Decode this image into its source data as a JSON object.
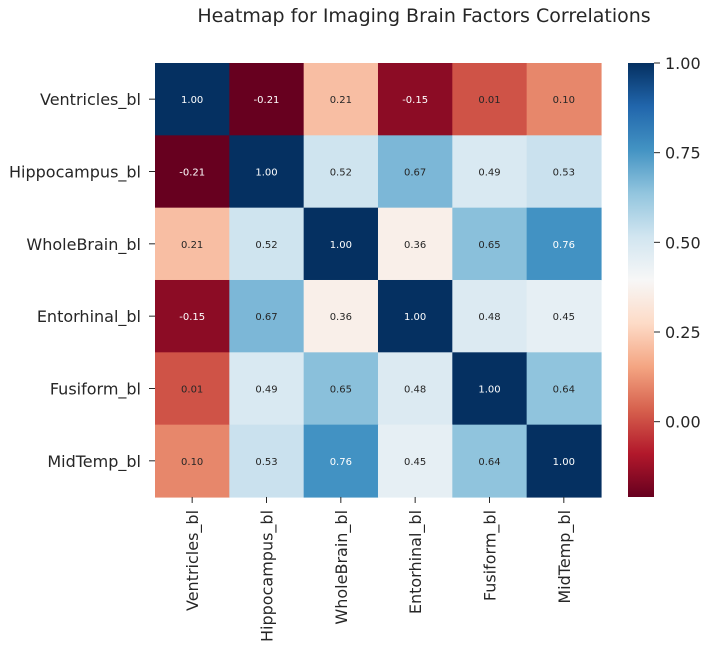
{
  "chart_data": {
    "type": "heatmap",
    "title": "Heatmap for Imaging Brain Factors Correlations",
    "xlabel": "",
    "ylabel": "",
    "rows": [
      "Ventricles_bl",
      "Hippocampus_bl",
      "WholeBrain_bl",
      "Entorhinal_bl",
      "Fusiform_bl",
      "MidTemp_bl"
    ],
    "columns": [
      "Ventricles_bl",
      "Hippocampus_bl",
      "WholeBrain_bl",
      "Entorhinal_bl",
      "Fusiform_bl",
      "MidTemp_bl"
    ],
    "values": [
      [
        1.0,
        -0.21,
        0.21,
        -0.15,
        0.01,
        0.1
      ],
      [
        -0.21,
        1.0,
        0.52,
        0.67,
        0.49,
        0.53
      ],
      [
        0.21,
        0.52,
        1.0,
        0.36,
        0.65,
        0.76
      ],
      [
        -0.15,
        0.67,
        0.36,
        1.0,
        0.48,
        0.45
      ],
      [
        0.01,
        0.49,
        0.65,
        0.48,
        1.0,
        0.64
      ],
      [
        0.1,
        0.53,
        0.76,
        0.45,
        0.64,
        1.0
      ]
    ],
    "cell_labels": [
      [
        "1.00",
        "-0.21",
        "0.21",
        "-0.15",
        "0.01",
        "0.10"
      ],
      [
        "-0.21",
        "1.00",
        "0.52",
        "0.67",
        "0.49",
        "0.53"
      ],
      [
        "0.21",
        "0.52",
        "1.00",
        "0.36",
        "0.65",
        "0.76"
      ],
      [
        "-0.15",
        "0.67",
        "0.36",
        "1.00",
        "0.48",
        "0.45"
      ],
      [
        "0.01",
        "0.49",
        "0.65",
        "0.48",
        "1.00",
        "0.64"
      ],
      [
        "0.10",
        "0.53",
        "0.76",
        "0.45",
        "0.64",
        "1.00"
      ]
    ],
    "colorscale": "RdBu",
    "color_range": [
      -0.21,
      1.0
    ],
    "colorbar": {
      "ticks": [
        0.0,
        0.25,
        0.5,
        0.75,
        1.0
      ],
      "tick_labels": [
        "0.00",
        "0.25",
        "0.50",
        "0.75",
        "1.00"
      ]
    },
    "colors": {
      "stops": [
        "#67001f",
        "#b2182b",
        "#d6604d",
        "#f4a582",
        "#fddbc7",
        "#f7f7f7",
        "#d1e5f0",
        "#92c5de",
        "#4393c3",
        "#2166ac",
        "#053061"
      ],
      "text_dark": "#262626",
      "text_light": "#ffffff"
    }
  }
}
